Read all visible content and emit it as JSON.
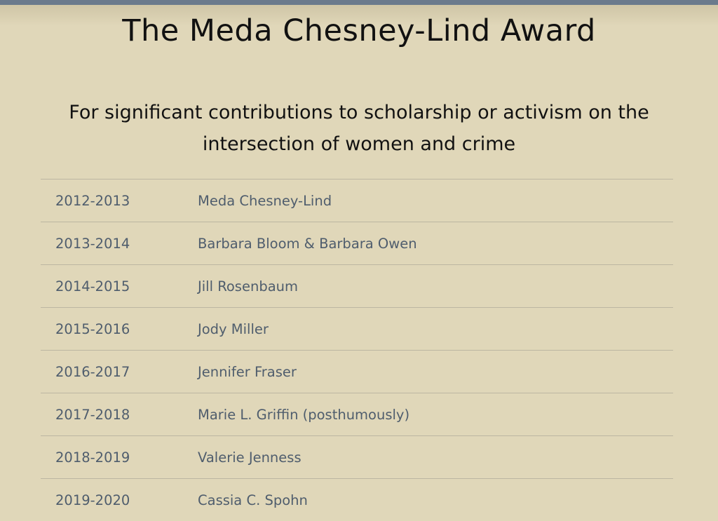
{
  "header": {
    "title": "The Meda Chesney-Lind Award",
    "subtitle": "For significant contributions to scholarship or activism on the intersection of women and crime"
  },
  "awards": [
    {
      "year": "2012-2013",
      "recipient": "Meda Chesney-Lind"
    },
    {
      "year": "2013-2014",
      "recipient": "Barbara Bloom & Barbara Owen"
    },
    {
      "year": "2014-2015",
      "recipient": "Jill Rosenbaum"
    },
    {
      "year": "2015-2016",
      "recipient": "Jody Miller"
    },
    {
      "year": "2016-2017",
      "recipient": "Jennifer Fraser"
    },
    {
      "year": "2017-2018",
      "recipient": "Marie L. Griffin (posthumously)"
    },
    {
      "year": "2018-2019",
      "recipient": "Valerie Jenness"
    },
    {
      "year": "2019-2020",
      "recipient": "Cassia C. Spohn"
    }
  ],
  "colors": {
    "background": "#e0d7b9",
    "top_bar": "#6b7a8c",
    "row_text": "#4f5d6d"
  }
}
